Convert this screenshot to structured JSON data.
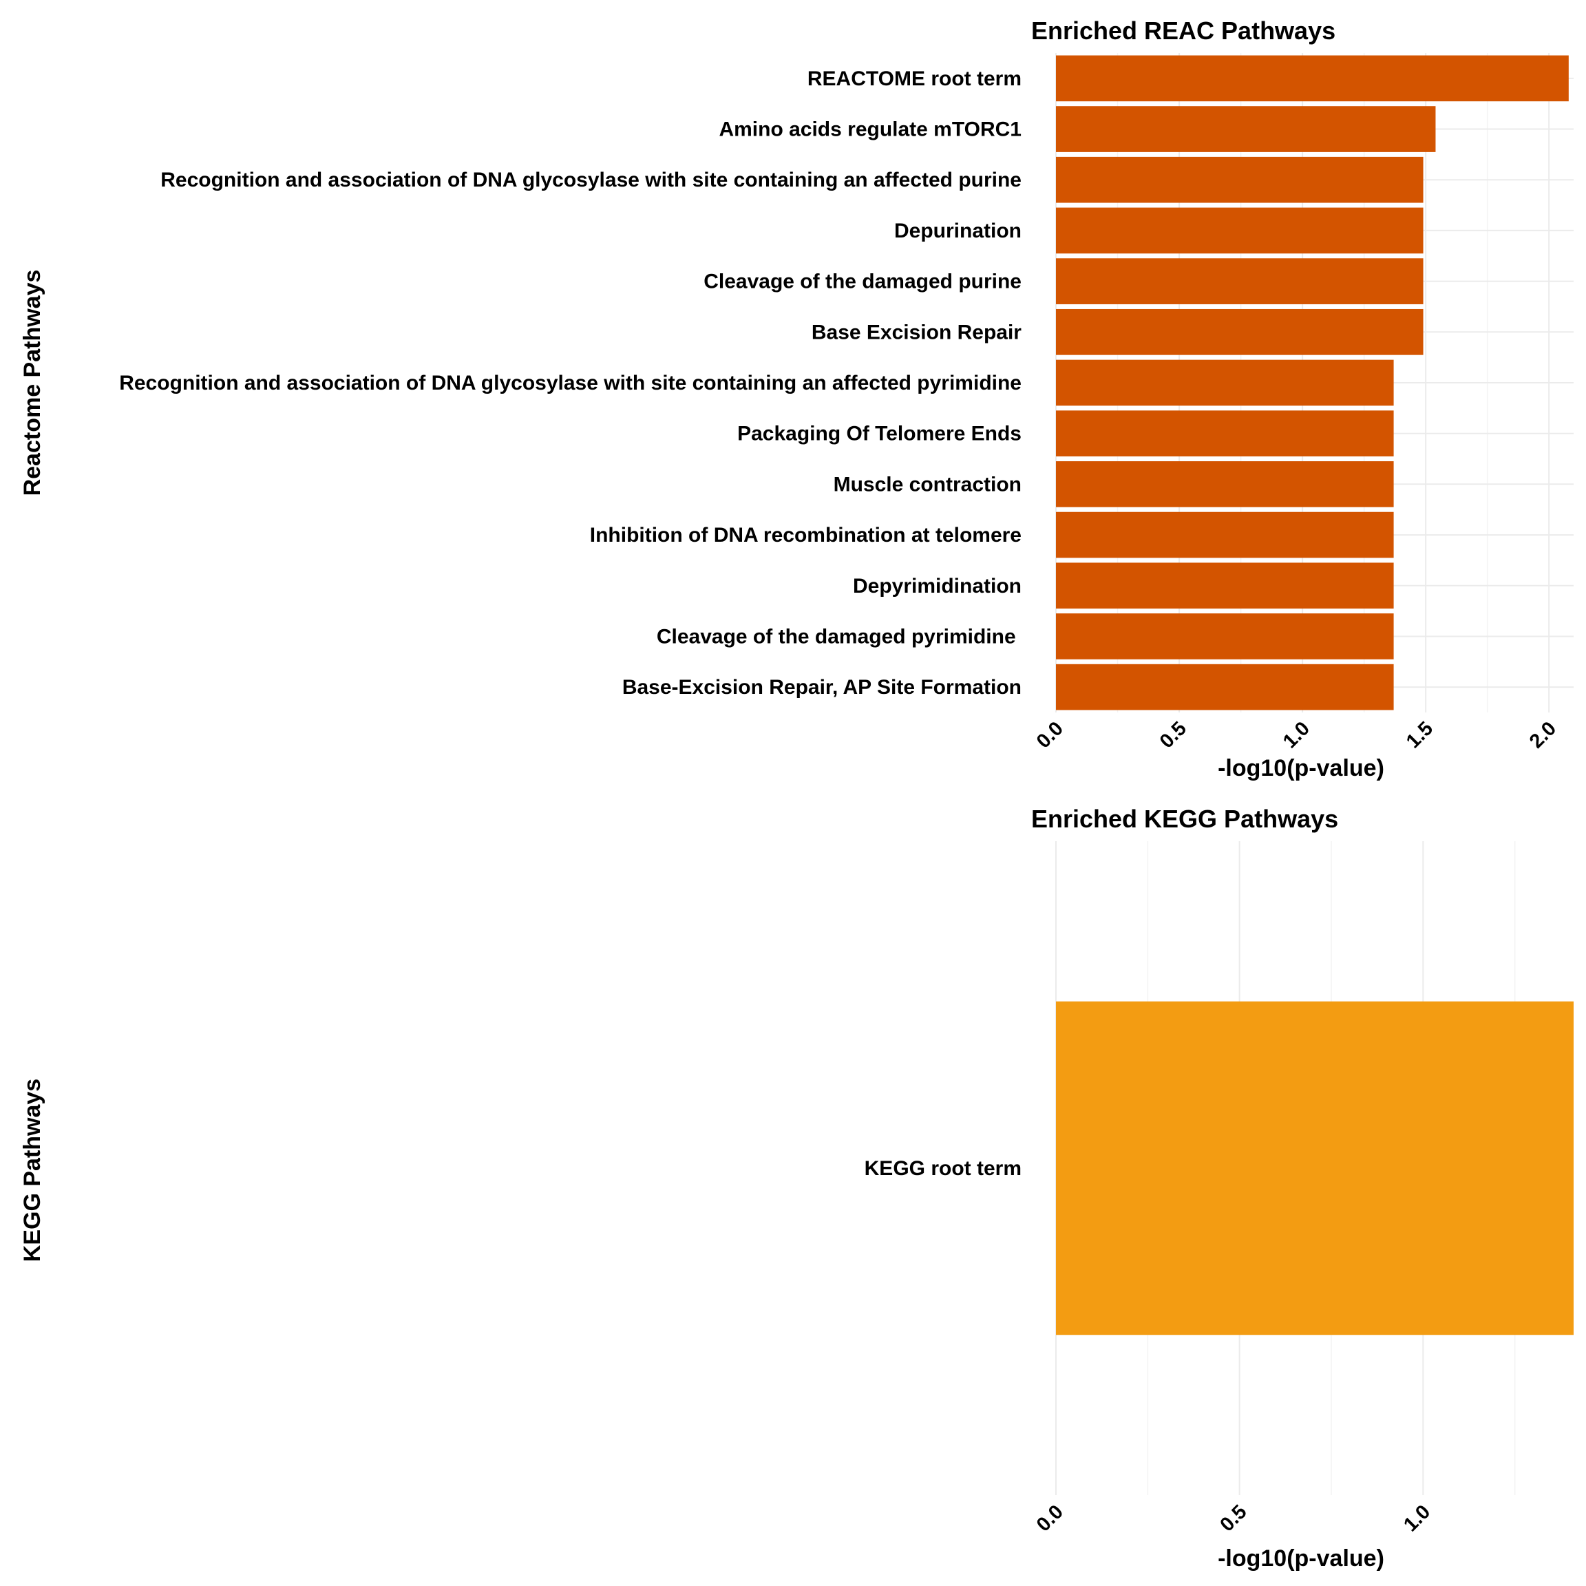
{
  "colors": {
    "reac_bar": "#D35400",
    "kegg_bar": "#F39C12"
  },
  "chart_data": [
    {
      "type": "bar",
      "orientation": "horizontal",
      "title": "Enriched REAC Pathways",
      "xlabel": "-log10(p-value)",
      "ylabel": "Reactome Pathways",
      "xlim": [
        0,
        2.1
      ],
      "xticks": [
        0.0,
        0.5,
        1.0,
        1.5,
        2.0
      ],
      "xtick_labels": [
        "0.0",
        "0.5",
        "1.0",
        "1.5",
        "2.0"
      ],
      "categories": [
        "REACTOME root term",
        "Amino acids regulate mTORC1",
        "Recognition and association of DNA glycosylase with site containing an affected purine",
        "Depurination",
        "Cleavage of the damaged purine",
        "Base Excision Repair",
        "Recognition and association of DNA glycosylase with site containing an affected pyrimidine",
        "Packaging Of Telomere Ends",
        "Muscle contraction",
        "Inhibition of DNA recombination at telomere",
        "Depyrimidination",
        "Cleavage of the damaged pyrimidine ",
        "Base-Excision Repair, AP Site Formation"
      ],
      "values": [
        2.08,
        1.54,
        1.49,
        1.49,
        1.49,
        1.49,
        1.37,
        1.37,
        1.37,
        1.37,
        1.37,
        1.37,
        1.37
      ],
      "color": "#D35400",
      "grid": true
    },
    {
      "type": "bar",
      "orientation": "horizontal",
      "title": "Enriched KEGG Pathways",
      "xlabel": "-log10(p-value)",
      "ylabel": "KEGG Pathways",
      "xlim": [
        0,
        1.41
      ],
      "xticks": [
        0.0,
        0.5,
        1.0
      ],
      "xtick_labels": [
        "0.0",
        "0.5",
        "1.0"
      ],
      "categories": [
        "KEGG root term"
      ],
      "values": [
        1.41
      ],
      "color": "#F39C12",
      "grid": true
    }
  ]
}
